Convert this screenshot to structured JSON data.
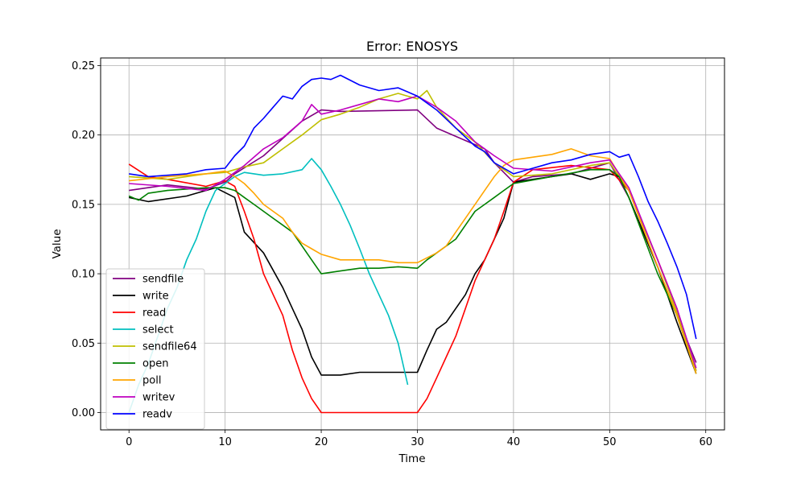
{
  "chart_data": {
    "type": "line",
    "title": "Error: ENOSYS",
    "xlabel": "Time",
    "ylabel": "Value",
    "xlim": [
      -2.95,
      61.95
    ],
    "ylim": [
      -0.0125,
      0.2555
    ],
    "xticks": [
      0,
      10,
      20,
      30,
      40,
      50,
      60
    ],
    "yticks": [
      0.0,
      0.05,
      0.1,
      0.15,
      0.2,
      0.25
    ],
    "ytick_labels": [
      "0.00",
      "0.05",
      "0.10",
      "0.15",
      "0.20",
      "0.25"
    ],
    "grid": true,
    "legend_position": "lower-left",
    "series": [
      {
        "name": "sendfile",
        "color": "#800080",
        "x": [
          0,
          4,
          8,
          10,
          11,
          14,
          18,
          20,
          22,
          30,
          32,
          37,
          38,
          40,
          42,
          46,
          50,
          52,
          55,
          57,
          59
        ],
        "y": [
          0.16,
          0.164,
          0.161,
          0.166,
          0.172,
          0.185,
          0.21,
          0.218,
          0.217,
          0.218,
          0.205,
          0.19,
          0.18,
          0.166,
          0.17,
          0.172,
          0.18,
          0.155,
          0.105,
          0.07,
          0.036
        ]
      },
      {
        "name": "write",
        "color": "#000000",
        "x": [
          0,
          2,
          6,
          9,
          11,
          12,
          14,
          16,
          17,
          18,
          19,
          20,
          22,
          24,
          28,
          30,
          31,
          32,
          33,
          34,
          35,
          36,
          37,
          38,
          39,
          40,
          42,
          46,
          48,
          50,
          51,
          52,
          55,
          57,
          59
        ],
        "y": [
          0.155,
          0.152,
          0.156,
          0.162,
          0.155,
          0.13,
          0.115,
          0.09,
          0.075,
          0.06,
          0.04,
          0.027,
          0.027,
          0.029,
          0.029,
          0.029,
          0.045,
          0.06,
          0.065,
          0.075,
          0.085,
          0.1,
          0.11,
          0.125,
          0.14,
          0.166,
          0.168,
          0.172,
          0.168,
          0.172,
          0.17,
          0.155,
          0.105,
          0.065,
          0.028
        ]
      },
      {
        "name": "read",
        "color": "#ff0000",
        "x": [
          0,
          2,
          4,
          8,
          10,
          11,
          12,
          13,
          14,
          15,
          16,
          17,
          18,
          19,
          20,
          30,
          31,
          32,
          33,
          34,
          35,
          36,
          37,
          38,
          39,
          40,
          42,
          46,
          50,
          52,
          55,
          57,
          59
        ],
        "y": [
          0.179,
          0.17,
          0.168,
          0.163,
          0.167,
          0.163,
          0.145,
          0.125,
          0.1,
          0.085,
          0.07,
          0.045,
          0.025,
          0.01,
          0.0,
          0.0,
          0.01,
          0.025,
          0.04,
          0.055,
          0.075,
          0.095,
          0.11,
          0.125,
          0.145,
          0.166,
          0.175,
          0.178,
          0.175,
          0.16,
          0.11,
          0.075,
          0.03
        ]
      },
      {
        "name": "select",
        "color": "#00bfbf",
        "x": [
          0,
          1,
          2,
          3,
          4,
          5,
          6,
          7,
          8,
          9,
          10,
          11,
          12,
          14,
          16,
          18,
          19,
          20,
          21,
          22,
          23,
          24,
          25,
          26,
          27,
          28,
          29
        ],
        "y": [
          0.0,
          0.02,
          0.035,
          0.055,
          0.075,
          0.09,
          0.11,
          0.125,
          0.145,
          0.16,
          0.165,
          0.17,
          0.173,
          0.171,
          0.172,
          0.175,
          0.183,
          0.175,
          0.163,
          0.15,
          0.135,
          0.118,
          0.1,
          0.085,
          0.07,
          0.05,
          0.02
        ]
      },
      {
        "name": "sendfile64",
        "color": "#bfbf00",
        "x": [
          0,
          4,
          8,
          10,
          12,
          14,
          16,
          18,
          20,
          22,
          24,
          26,
          28,
          30,
          31,
          32,
          34,
          36,
          38,
          40,
          44,
          48,
          50,
          52,
          55,
          57,
          59
        ],
        "y": [
          0.17,
          0.168,
          0.172,
          0.173,
          0.177,
          0.18,
          0.19,
          0.2,
          0.211,
          0.215,
          0.22,
          0.226,
          0.23,
          0.226,
          0.232,
          0.22,
          0.205,
          0.195,
          0.18,
          0.17,
          0.172,
          0.178,
          0.18,
          0.16,
          0.11,
          0.072,
          0.03
        ]
      },
      {
        "name": "open",
        "color": "#008000",
        "x": [
          0,
          1,
          2,
          4,
          8,
          10,
          11,
          12,
          13,
          14,
          15,
          16,
          17,
          18,
          19,
          20,
          22,
          24,
          26,
          28,
          30,
          31,
          32,
          33,
          34,
          35,
          36,
          37,
          38,
          39,
          40,
          44,
          48,
          50,
          51,
          52,
          55,
          57,
          59
        ],
        "y": [
          0.156,
          0.153,
          0.158,
          0.16,
          0.162,
          0.162,
          0.16,
          0.155,
          0.15,
          0.145,
          0.14,
          0.135,
          0.13,
          0.12,
          0.11,
          0.1,
          0.102,
          0.104,
          0.104,
          0.105,
          0.104,
          0.11,
          0.115,
          0.12,
          0.125,
          0.135,
          0.145,
          0.15,
          0.155,
          0.16,
          0.165,
          0.17,
          0.175,
          0.175,
          0.17,
          0.155,
          0.1,
          0.07,
          0.028
        ]
      },
      {
        "name": "poll",
        "color": "#ffa500",
        "x": [
          0,
          4,
          8,
          10,
          11,
          12,
          13,
          14,
          15,
          16,
          17,
          18,
          19,
          20,
          22,
          26,
          28,
          30,
          32,
          33,
          34,
          35,
          36,
          37,
          38,
          39,
          40,
          44,
          46,
          48,
          50,
          52,
          55,
          57,
          59
        ],
        "y": [
          0.167,
          0.17,
          0.172,
          0.174,
          0.17,
          0.165,
          0.158,
          0.15,
          0.145,
          0.14,
          0.13,
          0.122,
          0.118,
          0.114,
          0.11,
          0.11,
          0.108,
          0.108,
          0.115,
          0.12,
          0.13,
          0.14,
          0.15,
          0.16,
          0.17,
          0.178,
          0.182,
          0.186,
          0.19,
          0.185,
          0.183,
          0.16,
          0.105,
          0.07,
          0.028
        ]
      },
      {
        "name": "writev",
        "color": "#bf00bf",
        "x": [
          0,
          4,
          8,
          10,
          12,
          14,
          16,
          18,
          19,
          20,
          22,
          24,
          26,
          28,
          30,
          32,
          34,
          36,
          38,
          40,
          44,
          48,
          50,
          52,
          55,
          57,
          59
        ],
        "y": [
          0.165,
          0.163,
          0.16,
          0.168,
          0.178,
          0.19,
          0.198,
          0.21,
          0.222,
          0.215,
          0.218,
          0.222,
          0.226,
          0.224,
          0.228,
          0.22,
          0.21,
          0.195,
          0.185,
          0.176,
          0.174,
          0.18,
          0.182,
          0.162,
          0.11,
          0.075,
          0.032
        ]
      },
      {
        "name": "readv",
        "color": "#0000ff",
        "x": [
          0,
          2,
          6,
          8,
          10,
          11,
          12,
          13,
          14,
          15,
          16,
          17,
          18,
          19,
          20,
          21,
          22,
          24,
          26,
          28,
          30,
          32,
          34,
          36,
          37,
          38,
          40,
          44,
          46,
          48,
          50,
          51,
          52,
          53,
          54,
          55,
          56,
          57,
          58,
          59
        ],
        "y": [
          0.172,
          0.17,
          0.172,
          0.175,
          0.176,
          0.185,
          0.192,
          0.205,
          0.212,
          0.22,
          0.228,
          0.226,
          0.235,
          0.24,
          0.241,
          0.24,
          0.243,
          0.236,
          0.232,
          0.234,
          0.228,
          0.218,
          0.205,
          0.192,
          0.188,
          0.18,
          0.172,
          0.18,
          0.182,
          0.186,
          0.188,
          0.184,
          0.186,
          0.17,
          0.152,
          0.138,
          0.122,
          0.105,
          0.085,
          0.053
        ]
      }
    ]
  }
}
